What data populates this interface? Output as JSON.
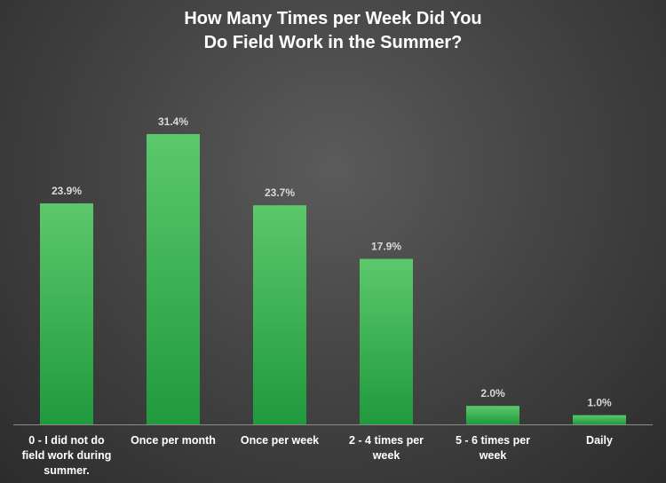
{
  "chart_data": {
    "type": "bar",
    "title_lines": [
      "How Many Times per Week Did You",
      "Do Field Work in the Summer?"
    ],
    "xlabel": "",
    "ylabel": "",
    "ylim": [
      0,
      35
    ],
    "grid": false,
    "legend": "none",
    "categories": [
      [
        "0 - I did not do",
        "field work during",
        "summer."
      ],
      [
        "Once per month"
      ],
      [
        "Once per week"
      ],
      [
        "2 - 4 times per",
        "week"
      ],
      [
        "5 - 6 times per",
        "week"
      ],
      [
        "Daily"
      ]
    ],
    "values": [
      23.9,
      31.4,
      23.7,
      17.9,
      2.0,
      1.0
    ],
    "data_labels": [
      "23.9%",
      "31.4%",
      "23.7%",
      "17.9%",
      "2.0%",
      "1.0%"
    ],
    "colors": {
      "bar_top": "#5cc86c",
      "bar_bottom": "#1f9a3c",
      "axis": "#8c8c8c",
      "data_label": "#d9d9d9",
      "category_label": "#ffffff",
      "title": "#ffffff"
    }
  }
}
